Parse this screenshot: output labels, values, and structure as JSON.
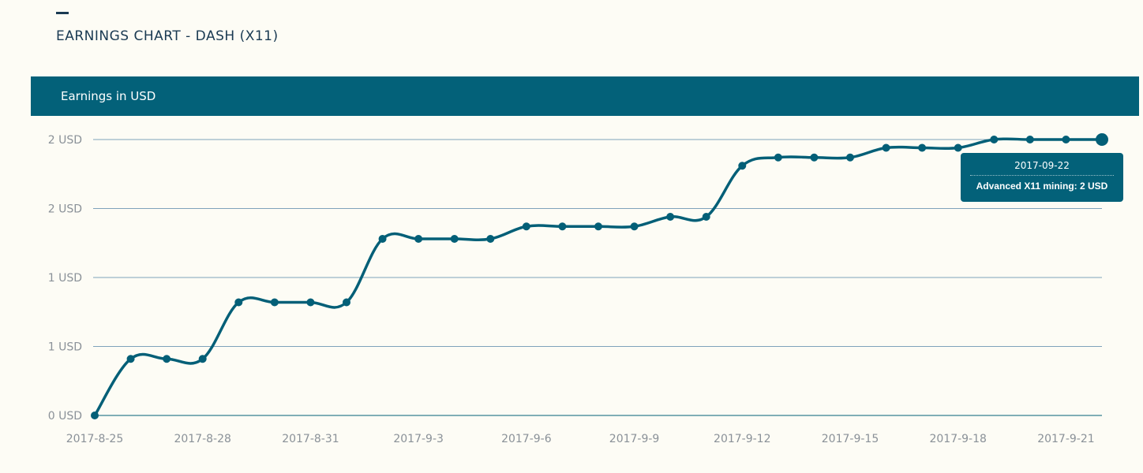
{
  "page": {
    "title": "EARNINGS CHART - DASH (X11)"
  },
  "panel": {
    "title": "Earnings in USD"
  },
  "colors": {
    "background": "#fdfcf5",
    "accent": "#036179",
    "line": "#035f77",
    "grid": "#7fa3bb",
    "title": "#1a3a52",
    "tick": "#8a9198"
  },
  "tooltip": {
    "date": "2017-09-22",
    "text": "Advanced X11 mining: 2 USD"
  },
  "chart_data": {
    "type": "line",
    "title": "Earnings in USD",
    "xlabel": "",
    "ylabel": "",
    "grid": true,
    "ylim": [
      0,
      2
    ],
    "y_ticks": [
      0,
      0.5,
      1,
      1.5,
      2
    ],
    "y_tick_labels": [
      "0 USD",
      "1 USD",
      "1 USD",
      "2 USD",
      "2 USD"
    ],
    "x_tick_labels": [
      "2017-8-25",
      "2017-8-28",
      "2017-8-31",
      "2017-9-3",
      "2017-9-6",
      "2017-9-9",
      "2017-9-12",
      "2017-9-15",
      "2017-9-18",
      "2017-9-21"
    ],
    "x": [
      "2017-8-25",
      "2017-8-26",
      "2017-8-27",
      "2017-8-28",
      "2017-8-29",
      "2017-8-30",
      "2017-8-31",
      "2017-9-1",
      "2017-9-2",
      "2017-9-3",
      "2017-9-4",
      "2017-9-5",
      "2017-9-6",
      "2017-9-7",
      "2017-9-8",
      "2017-9-9",
      "2017-9-10",
      "2017-9-11",
      "2017-9-12",
      "2017-9-13",
      "2017-9-14",
      "2017-9-15",
      "2017-9-16",
      "2017-9-17",
      "2017-9-18",
      "2017-9-19",
      "2017-9-20",
      "2017-9-21",
      "2017-9-22"
    ],
    "series": [
      {
        "values": [
          0,
          0.41,
          0.41,
          0.41,
          0.82,
          0.82,
          0.82,
          0.82,
          1.28,
          1.28,
          1.28,
          1.28,
          1.37,
          1.37,
          1.37,
          1.37,
          1.44,
          1.44,
          1.81,
          1.87,
          1.87,
          1.87,
          1.94,
          1.94,
          1.94,
          2.0,
          2.0,
          2.0,
          2.0
        ]
      }
    ]
  }
}
